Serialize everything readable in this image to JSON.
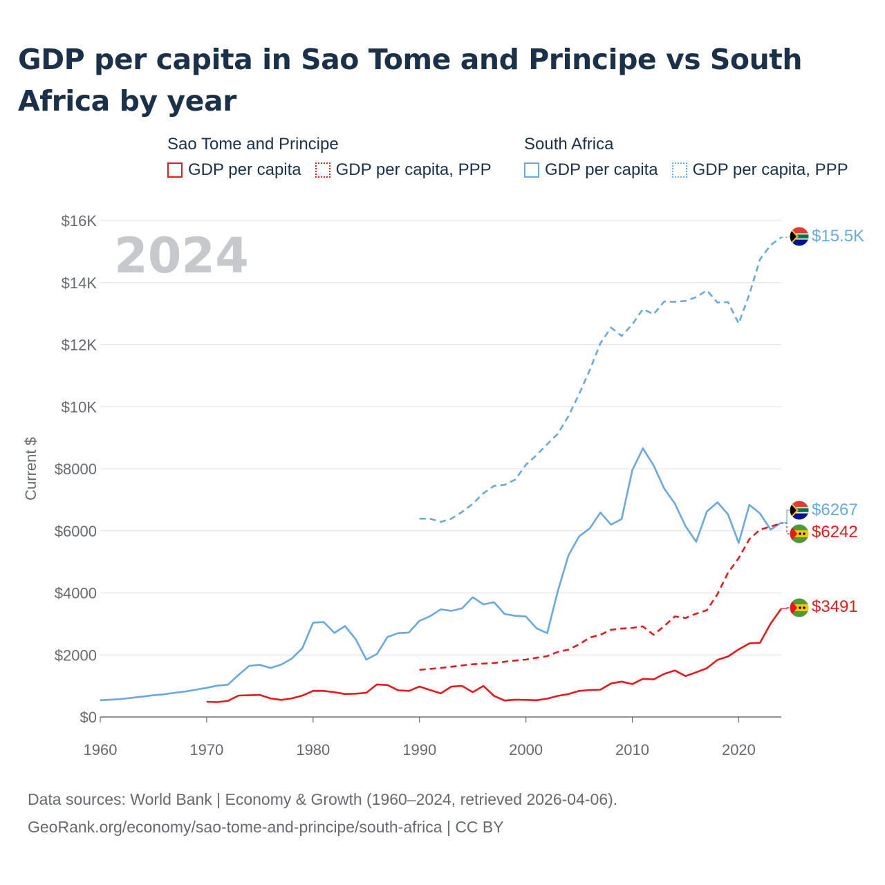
{
  "title": "GDP per capita in Sao Tome and Principe vs South Africa by year",
  "legend": {
    "groups": [
      {
        "name": "Sao Tome and Principe",
        "color": "#e8191b",
        "items": [
          {
            "label": "GDP per capita",
            "style": "solid"
          },
          {
            "label": "GDP per capita, PPP",
            "style": "dotted"
          }
        ]
      },
      {
        "name": "South Africa",
        "color": "#6aa8e0",
        "items": [
          {
            "label": "GDP per capita",
            "style": "solid"
          },
          {
            "label": "GDP per capita, PPP",
            "style": "dotted"
          }
        ]
      }
    ]
  },
  "footer": {
    "line1": "Data sources: World Bank | Economy & Growth (1960–2024, retrieved 2026-04-06).",
    "line2": "GeoRank.org/economy/sao-tome-and-principe/south-africa | CC BY"
  },
  "chart_data": {
    "type": "line",
    "year_watermark": "2024",
    "ylabel": "Current $",
    "xlim": [
      1960,
      2024
    ],
    "ylim": [
      0,
      16000
    ],
    "x_ticks": [
      "1960",
      "1970",
      "1980",
      "1990",
      "2000",
      "2010",
      "2020"
    ],
    "y_ticks": [
      {
        "value": 0,
        "label": "$0"
      },
      {
        "value": 2000,
        "label": "$2000"
      },
      {
        "value": 4000,
        "label": "$4000"
      },
      {
        "value": 6000,
        "label": "$6000"
      },
      {
        "value": 8000,
        "label": "$8000"
      },
      {
        "value": 10000,
        "label": "$10K"
      },
      {
        "value": 12000,
        "label": "$12K"
      },
      {
        "value": 14000,
        "label": "$14K"
      },
      {
        "value": 16000,
        "label": "$16K"
      }
    ],
    "series": [
      {
        "name": "South Africa GDP per capita, PPP",
        "country": "South Africa",
        "color": "#6aa8e0",
        "dash": "dashed",
        "end_label": "$15.5K",
        "flag": "south-africa",
        "start_year": 1990,
        "values": [
          6390,
          6390,
          6290,
          6390,
          6610,
          6870,
          7210,
          7450,
          7480,
          7650,
          8130,
          8440,
          8790,
          9130,
          9700,
          10410,
          11180,
          12050,
          12550,
          12280,
          12650,
          13150,
          12980,
          13390,
          13380,
          13410,
          13530,
          13750,
          13360,
          13370,
          12680,
          13620,
          14750,
          15210,
          15460
        ]
      },
      {
        "name": "South Africa GDP per capita",
        "country": "South Africa",
        "color": "#6aa8e0",
        "dash": "solid",
        "end_label": "$6267",
        "flag": "south-africa",
        "start_year": 1960,
        "values": [
          540,
          560,
          580,
          620,
          660,
          700,
          730,
          780,
          820,
          880,
          940,
          1010,
          1040,
          1360,
          1650,
          1680,
          1580,
          1690,
          1880,
          2220,
          3040,
          3060,
          2710,
          2930,
          2510,
          1850,
          2030,
          2580,
          2700,
          2720,
          3100,
          3250,
          3470,
          3420,
          3500,
          3860,
          3630,
          3700,
          3320,
          3260,
          3240,
          2860,
          2700,
          4060,
          5210,
          5820,
          6080,
          6590,
          6200,
          6380,
          7950,
          8660,
          8110,
          7360,
          6880,
          6150,
          5650,
          6620,
          6920,
          6530,
          5610,
          6840,
          6560,
          6040,
          6267
        ]
      },
      {
        "name": "Sao Tome and Principe GDP per capita, PPP",
        "country": "Sao Tome and Principe",
        "color": "#e8191b",
        "dash": "dashed",
        "end_label": "$6242",
        "flag": "sao-tome",
        "start_year": 1990,
        "values": [
          1520,
          1550,
          1580,
          1620,
          1660,
          1700,
          1720,
          1740,
          1780,
          1820,
          1850,
          1910,
          1960,
          2100,
          2170,
          2340,
          2560,
          2650,
          2810,
          2850,
          2870,
          2920,
          2650,
          2930,
          3240,
          3190,
          3330,
          3440,
          3960,
          4650,
          5120,
          5730,
          6040,
          6140,
          6242
        ]
      },
      {
        "name": "Sao Tome and Principe GDP per capita",
        "country": "Sao Tome and Principe",
        "color": "#e8191b",
        "dash": "solid",
        "end_label": "$3491",
        "flag": "sao-tome",
        "start_year": 1970,
        "values": [
          490,
          480,
          520,
          690,
          700,
          710,
          600,
          550,
          600,
          690,
          840,
          840,
          800,
          740,
          750,
          780,
          1050,
          1030,
          860,
          840,
          980,
          870,
          760,
          980,
          1000,
          800,
          1000,
          680,
          530,
          560,
          550,
          540,
          590,
          680,
          740,
          840,
          870,
          880,
          1080,
          1140,
          1060,
          1230,
          1210,
          1390,
          1500,
          1320,
          1440,
          1570,
          1840,
          1950,
          2180,
          2370,
          2390,
          3010,
          3491
        ]
      }
    ]
  }
}
